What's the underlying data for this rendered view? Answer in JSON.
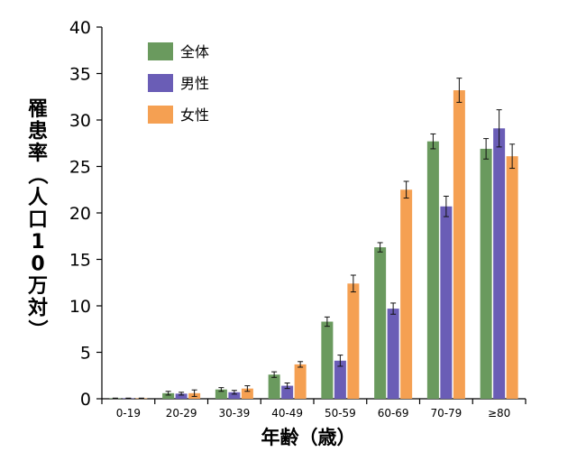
{
  "chart_data": {
    "type": "bar",
    "title": "",
    "xlabel": "年齢（歳）",
    "ylabel": "罹患率（人口10万対）",
    "ylim": [
      0,
      40
    ],
    "yticks": [
      0,
      5,
      10,
      15,
      20,
      25,
      30,
      35,
      40
    ],
    "grid": false,
    "legend_position": "top-left",
    "categories": [
      "0-19",
      "20-29",
      "30-39",
      "40-49",
      "50-59",
      "60-69",
      "70-79",
      "≥80"
    ],
    "series": [
      {
        "name": "全体",
        "color": "#6a9a5e",
        "values": [
          0.05,
          0.6,
          1.0,
          2.6,
          8.3,
          16.3,
          27.7,
          26.9
        ],
        "error": [
          0.02,
          0.2,
          0.2,
          0.3,
          0.5,
          0.5,
          0.8,
          1.1
        ]
      },
      {
        "name": "男性",
        "color": "#6a5db6",
        "values": [
          0.05,
          0.55,
          0.7,
          1.4,
          4.1,
          9.7,
          20.7,
          29.1
        ],
        "error": [
          0.02,
          0.15,
          0.2,
          0.3,
          0.6,
          0.6,
          1.1,
          2.0
        ]
      },
      {
        "name": "女性",
        "color": "#f5a052",
        "values": [
          0.05,
          0.6,
          1.1,
          3.7,
          12.4,
          22.5,
          33.2,
          26.1
        ],
        "error": [
          0.02,
          0.35,
          0.3,
          0.3,
          0.9,
          0.9,
          1.3,
          1.3
        ]
      }
    ]
  }
}
